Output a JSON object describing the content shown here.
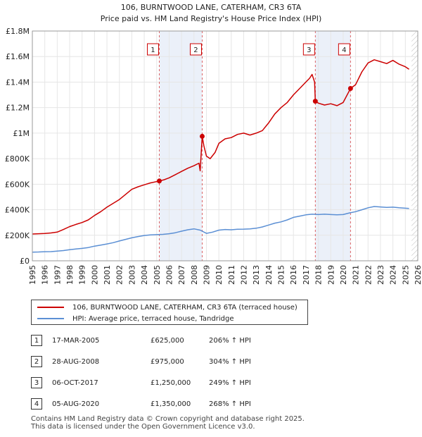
{
  "chart_data": {
    "type": "line",
    "title": "106, BURNTWOOD LANE, CATERHAM, CR3 6TA",
    "subtitle": "Price paid vs. HM Land Registry's House Price Index (HPI)",
    "xlim": [
      1995,
      2026
    ],
    "ylim": [
      0,
      1800000
    ],
    "x_ticks": [
      "1995",
      "1996",
      "1997",
      "1998",
      "1999",
      "2000",
      "2001",
      "2002",
      "2003",
      "2004",
      "2005",
      "2006",
      "2007",
      "2008",
      "2009",
      "2010",
      "2011",
      "2012",
      "2013",
      "2014",
      "2015",
      "2016",
      "2017",
      "2018",
      "2019",
      "2020",
      "2021",
      "2022",
      "2023",
      "2024",
      "2025",
      "2026"
    ],
    "y_ticks": [
      {
        "value": 0,
        "label": "£0"
      },
      {
        "value": 200000,
        "label": "£200K"
      },
      {
        "value": 400000,
        "label": "£400K"
      },
      {
        "value": 600000,
        "label": "£600K"
      },
      {
        "value": 800000,
        "label": "£800K"
      },
      {
        "value": 1000000,
        "label": "£1M"
      },
      {
        "value": 1200000,
        "label": "£1.2M"
      },
      {
        "value": 1400000,
        "label": "£1.4M"
      },
      {
        "value": 1600000,
        "label": "£1.6M"
      },
      {
        "value": 1800000,
        "label": "£1.8M"
      }
    ],
    "series": [
      {
        "name": "106, BURNTWOOD LANE, CATERHAM, CR3 6TA (terraced house)",
        "color": "#cc0000",
        "points": [
          [
            1995.0,
            210000
          ],
          [
            1995.5,
            212000
          ],
          [
            1996.0,
            214000
          ],
          [
            1996.5,
            218000
          ],
          [
            1997.0,
            225000
          ],
          [
            1997.5,
            245000
          ],
          [
            1998.0,
            268000
          ],
          [
            1998.5,
            285000
          ],
          [
            1999.0,
            300000
          ],
          [
            1999.5,
            320000
          ],
          [
            2000.0,
            355000
          ],
          [
            2000.5,
            385000
          ],
          [
            2001.0,
            420000
          ],
          [
            2001.5,
            450000
          ],
          [
            2002.0,
            480000
          ],
          [
            2002.5,
            520000
          ],
          [
            2003.0,
            560000
          ],
          [
            2003.5,
            580000
          ],
          [
            2004.0,
            595000
          ],
          [
            2004.5,
            610000
          ],
          [
            2005.21,
            625000
          ],
          [
            2005.6,
            635000
          ],
          [
            2006.0,
            650000
          ],
          [
            2006.5,
            675000
          ],
          [
            2007.0,
            700000
          ],
          [
            2007.5,
            725000
          ],
          [
            2008.0,
            745000
          ],
          [
            2008.4,
            765000
          ],
          [
            2008.5,
            705000
          ],
          [
            2008.66,
            975000
          ],
          [
            2008.8,
            900000
          ],
          [
            2009.0,
            820000
          ],
          [
            2009.3,
            800000
          ],
          [
            2009.7,
            850000
          ],
          [
            2010.0,
            920000
          ],
          [
            2010.5,
            955000
          ],
          [
            2011.0,
            965000
          ],
          [
            2011.5,
            990000
          ],
          [
            2012.0,
            1000000
          ],
          [
            2012.5,
            985000
          ],
          [
            2013.0,
            1000000
          ],
          [
            2013.5,
            1020000
          ],
          [
            2014.0,
            1080000
          ],
          [
            2014.5,
            1150000
          ],
          [
            2015.0,
            1200000
          ],
          [
            2015.5,
            1240000
          ],
          [
            2016.0,
            1300000
          ],
          [
            2016.5,
            1350000
          ],
          [
            2017.0,
            1400000
          ],
          [
            2017.3,
            1430000
          ],
          [
            2017.5,
            1460000
          ],
          [
            2017.7,
            1400000
          ],
          [
            2017.76,
            1250000
          ],
          [
            2018.0,
            1235000
          ],
          [
            2018.5,
            1220000
          ],
          [
            2019.0,
            1230000
          ],
          [
            2019.5,
            1215000
          ],
          [
            2020.0,
            1240000
          ],
          [
            2020.59,
            1350000
          ],
          [
            2021.0,
            1380000
          ],
          [
            2021.5,
            1480000
          ],
          [
            2022.0,
            1550000
          ],
          [
            2022.5,
            1575000
          ],
          [
            2023.0,
            1560000
          ],
          [
            2023.5,
            1545000
          ],
          [
            2024.0,
            1570000
          ],
          [
            2024.5,
            1540000
          ],
          [
            2025.0,
            1520000
          ],
          [
            2025.3,
            1500000
          ]
        ]
      },
      {
        "name": "HPI: Average price, terraced house, Tandridge",
        "color": "#5b8fd4",
        "points": [
          [
            1995.0,
            68000
          ],
          [
            1995.5,
            69000
          ],
          [
            1996.0,
            71000
          ],
          [
            1996.5,
            72000
          ],
          [
            1997.0,
            76000
          ],
          [
            1997.5,
            80000
          ],
          [
            1998.0,
            87000
          ],
          [
            1998.5,
            92000
          ],
          [
            1999.0,
            97000
          ],
          [
            1999.5,
            104000
          ],
          [
            2000.0,
            115000
          ],
          [
            2000.5,
            123000
          ],
          [
            2001.0,
            132000
          ],
          [
            2001.5,
            142000
          ],
          [
            2002.0,
            155000
          ],
          [
            2002.5,
            168000
          ],
          [
            2003.0,
            180000
          ],
          [
            2003.5,
            190000
          ],
          [
            2004.0,
            198000
          ],
          [
            2004.5,
            203000
          ],
          [
            2005.0,
            205000
          ],
          [
            2005.5,
            207000
          ],
          [
            2006.0,
            212000
          ],
          [
            2006.5,
            220000
          ],
          [
            2007.0,
            232000
          ],
          [
            2007.5,
            243000
          ],
          [
            2008.0,
            250000
          ],
          [
            2008.5,
            240000
          ],
          [
            2009.0,
            215000
          ],
          [
            2009.5,
            225000
          ],
          [
            2010.0,
            240000
          ],
          [
            2010.5,
            245000
          ],
          [
            2011.0,
            243000
          ],
          [
            2011.5,
            247000
          ],
          [
            2012.0,
            248000
          ],
          [
            2012.5,
            250000
          ],
          [
            2013.0,
            255000
          ],
          [
            2013.5,
            265000
          ],
          [
            2014.0,
            280000
          ],
          [
            2014.5,
            295000
          ],
          [
            2015.0,
            305000
          ],
          [
            2015.5,
            320000
          ],
          [
            2016.0,
            340000
          ],
          [
            2016.5,
            350000
          ],
          [
            2017.0,
            360000
          ],
          [
            2017.5,
            365000
          ],
          [
            2018.0,
            362000
          ],
          [
            2018.5,
            365000
          ],
          [
            2019.0,
            362000
          ],
          [
            2019.5,
            360000
          ],
          [
            2020.0,
            362000
          ],
          [
            2020.5,
            375000
          ],
          [
            2021.0,
            385000
          ],
          [
            2021.5,
            400000
          ],
          [
            2022.0,
            415000
          ],
          [
            2022.5,
            425000
          ],
          [
            2023.0,
            422000
          ],
          [
            2023.5,
            418000
          ],
          [
            2024.0,
            420000
          ],
          [
            2024.5,
            415000
          ],
          [
            2025.0,
            412000
          ],
          [
            2025.3,
            410000
          ]
        ]
      }
    ],
    "sales": [
      {
        "id": "1",
        "x": 2005.21,
        "price": 625000
      },
      {
        "id": "2",
        "x": 2008.66,
        "price": 975000
      },
      {
        "id": "3",
        "x": 2017.76,
        "price": 1250000
      },
      {
        "id": "4",
        "x": 2020.59,
        "price": 1350000
      }
    ],
    "future_start": 2025.5
  },
  "legend": {
    "property_label": "106, BURNTWOOD LANE, CATERHAM, CR3 6TA (terraced house)",
    "hpi_label": "HPI: Average price, terraced house, Tandridge",
    "property_color": "#cc0000",
    "hpi_color": "#5b8fd4"
  },
  "sales_table": [
    {
      "num": "1",
      "date": "17-MAR-2005",
      "price": "£625,000",
      "pct": "206% ↑ HPI"
    },
    {
      "num": "2",
      "date": "28-AUG-2008",
      "price": "£975,000",
      "pct": "304% ↑ HPI"
    },
    {
      "num": "3",
      "date": "06-OCT-2017",
      "price": "£1,250,000",
      "pct": "249% ↑ HPI"
    },
    {
      "num": "4",
      "date": "05-AUG-2020",
      "price": "£1,350,000",
      "pct": "268% ↑ HPI"
    }
  ],
  "footer": {
    "line1": "Contains HM Land Registry data © Crown copyright and database right 2025.",
    "line2": "This data is licensed under the Open Government Licence v3.0."
  }
}
